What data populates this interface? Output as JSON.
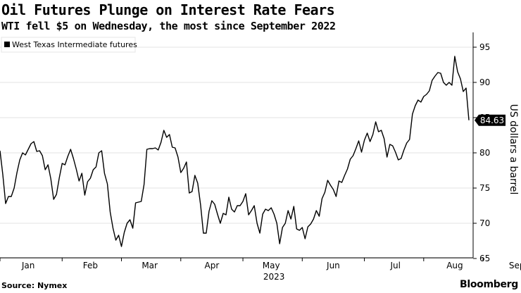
{
  "header": {
    "title": "Oil Futures Plunge on Interest Rate Fears",
    "subtitle": "WTI fell $5 on Wednesday, the most since September 2022"
  },
  "footer": {
    "source": "Source: Nymex",
    "brand": "Bloomberg"
  },
  "chart_data": {
    "type": "line",
    "ylabel": "US dollars a barrel",
    "ylim": [
      65,
      96
    ],
    "yticks": [
      65,
      70,
      75,
      80,
      85,
      90,
      95
    ],
    "xlabels": [
      {
        "label": "Jan",
        "x": 10
      },
      {
        "label": "Feb",
        "x": 32
      },
      {
        "label": "Mar",
        "x": 53
      },
      {
        "label": "Apr",
        "x": 75
      },
      {
        "label": "May",
        "x": 96
      },
      {
        "label": "Jun",
        "x": 118
      },
      {
        "label": "Jul",
        "x": 140
      },
      {
        "label": "Aug",
        "x": 161
      },
      {
        "label": "Sep",
        "x": 183
      }
    ],
    "year_label": "2023",
    "legend": {
      "label": "West Texas Intermediate futures",
      "position": "top-left"
    },
    "last_value_label": "84.63",
    "grid": "horizontal",
    "series": [
      {
        "name": "West Texas Intermediate futures",
        "color": "#000000",
        "points": [
          [
            0,
            80.3
          ],
          [
            1,
            76.9
          ],
          [
            2,
            72.8
          ],
          [
            3,
            73.8
          ],
          [
            4,
            73.8
          ],
          [
            5,
            75.0
          ],
          [
            6,
            77.2
          ],
          [
            7,
            79.0
          ],
          [
            8,
            80.0
          ],
          [
            9,
            79.7
          ],
          [
            10,
            80.5
          ],
          [
            11,
            81.3
          ],
          [
            12,
            81.6
          ],
          [
            13,
            80.2
          ],
          [
            14,
            80.3
          ],
          [
            15,
            79.6
          ],
          [
            16,
            77.6
          ],
          [
            17,
            78.3
          ],
          [
            18,
            76.3
          ],
          [
            19,
            73.4
          ],
          [
            20,
            74.1
          ],
          [
            21,
            76.5
          ],
          [
            22,
            78.5
          ],
          [
            23,
            78.3
          ],
          [
            24,
            79.5
          ],
          [
            25,
            80.5
          ],
          [
            26,
            79.2
          ],
          [
            27,
            77.7
          ],
          [
            28,
            76.0
          ],
          [
            29,
            77.1
          ],
          [
            30,
            74.0
          ],
          [
            31,
            75.9
          ],
          [
            32,
            76.4
          ],
          [
            33,
            77.6
          ],
          [
            34,
            78.0
          ],
          [
            35,
            80.0
          ],
          [
            36,
            80.3
          ],
          [
            37,
            77.1
          ],
          [
            38,
            75.6
          ],
          [
            39,
            71.6
          ],
          [
            40,
            69.3
          ],
          [
            41,
            67.6
          ],
          [
            42,
            68.3
          ],
          [
            43,
            66.7
          ],
          [
            44,
            68.7
          ],
          [
            45,
            70.0
          ],
          [
            46,
            70.5
          ],
          [
            47,
            69.3
          ],
          [
            48,
            72.9
          ],
          [
            49,
            73.0
          ],
          [
            50,
            73.1
          ],
          [
            51,
            75.5
          ],
          [
            52,
            80.5
          ],
          [
            53,
            80.6
          ],
          [
            54,
            80.6
          ],
          [
            55,
            80.7
          ],
          [
            56,
            80.4
          ],
          [
            57,
            81.5
          ],
          [
            58,
            83.2
          ],
          [
            59,
            82.2
          ],
          [
            60,
            82.6
          ],
          [
            61,
            80.8
          ],
          [
            62,
            80.7
          ],
          [
            63,
            79.4
          ],
          [
            64,
            77.2
          ],
          [
            65,
            77.8
          ],
          [
            66,
            78.7
          ],
          [
            67,
            74.3
          ],
          [
            68,
            74.5
          ],
          [
            69,
            76.8
          ],
          [
            70,
            75.7
          ],
          [
            71,
            72.6
          ],
          [
            72,
            68.6
          ],
          [
            73,
            68.6
          ],
          [
            74,
            71.7
          ],
          [
            75,
            73.2
          ],
          [
            76,
            72.7
          ],
          [
            77,
            71.3
          ],
          [
            78,
            70.0
          ],
          [
            79,
            71.4
          ],
          [
            80,
            71.2
          ],
          [
            81,
            73.7
          ],
          [
            82,
            72.0
          ],
          [
            83,
            71.6
          ],
          [
            84,
            72.5
          ],
          [
            85,
            72.5
          ],
          [
            86,
            73.1
          ],
          [
            87,
            74.2
          ],
          [
            88,
            71.2
          ],
          [
            89,
            71.8
          ],
          [
            90,
            72.5
          ],
          [
            91,
            70.0
          ],
          [
            92,
            68.6
          ],
          [
            93,
            71.3
          ],
          [
            94,
            72.0
          ],
          [
            95,
            71.8
          ],
          [
            96,
            72.2
          ],
          [
            97,
            71.3
          ],
          [
            98,
            70.0
          ],
          [
            99,
            67.1
          ],
          [
            100,
            69.4
          ],
          [
            101,
            70.0
          ],
          [
            102,
            71.8
          ],
          [
            103,
            70.6
          ],
          [
            104,
            72.4
          ],
          [
            105,
            69.2
          ],
          [
            106,
            69.0
          ],
          [
            107,
            69.4
          ],
          [
            108,
            67.8
          ],
          [
            109,
            69.5
          ],
          [
            110,
            69.9
          ],
          [
            111,
            70.6
          ],
          [
            112,
            71.8
          ],
          [
            113,
            71.0
          ],
          [
            114,
            73.5
          ],
          [
            115,
            74.4
          ],
          [
            116,
            76.1
          ],
          [
            117,
            75.4
          ],
          [
            118,
            74.8
          ],
          [
            119,
            73.8
          ],
          [
            120,
            76.0
          ],
          [
            121,
            75.8
          ],
          [
            122,
            76.8
          ],
          [
            123,
            77.7
          ],
          [
            124,
            79.1
          ],
          [
            125,
            79.6
          ],
          [
            126,
            80.6
          ],
          [
            127,
            81.7
          ],
          [
            128,
            80.1
          ],
          [
            129,
            81.8
          ],
          [
            130,
            82.8
          ],
          [
            131,
            81.6
          ],
          [
            132,
            82.6
          ],
          [
            133,
            84.4
          ],
          [
            134,
            83.0
          ],
          [
            135,
            83.2
          ],
          [
            136,
            82.0
          ],
          [
            137,
            79.4
          ],
          [
            138,
            81.2
          ],
          [
            139,
            81.0
          ],
          [
            140,
            80.1
          ],
          [
            141,
            79.0
          ],
          [
            142,
            79.2
          ],
          [
            143,
            80.4
          ],
          [
            144,
            81.4
          ],
          [
            145,
            81.9
          ],
          [
            146,
            85.5
          ],
          [
            147,
            86.7
          ],
          [
            148,
            87.5
          ],
          [
            149,
            87.2
          ],
          [
            150,
            88.0
          ],
          [
            151,
            88.3
          ],
          [
            152,
            88.8
          ],
          [
            153,
            90.3
          ],
          [
            154,
            90.9
          ],
          [
            155,
            91.4
          ],
          [
            156,
            91.3
          ],
          [
            157,
            90.0
          ],
          [
            158,
            89.6
          ],
          [
            159,
            90.0
          ],
          [
            160,
            89.6
          ],
          [
            161,
            93.7
          ],
          [
            162,
            91.5
          ],
          [
            163,
            90.5
          ],
          [
            164,
            88.7
          ],
          [
            165,
            89.2
          ],
          [
            166,
            84.63
          ]
        ]
      }
    ]
  }
}
